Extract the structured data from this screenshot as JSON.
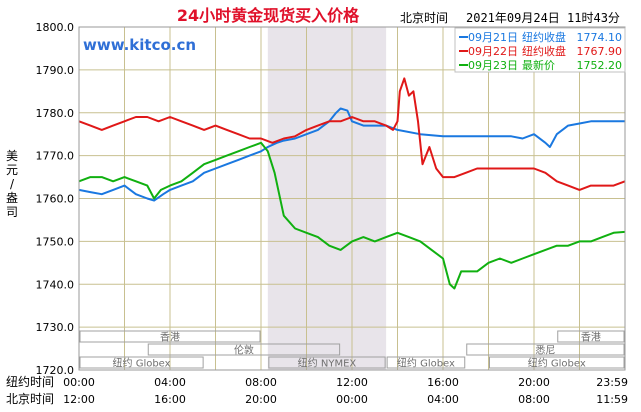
{
  "header": {
    "title": "24小时黄金现货买入价格",
    "timezone_label": "北京时间",
    "timestamp": "2021年09月24日 11时43分"
  },
  "watermark": "www.kitco.cn",
  "yaxis_label_chars": [
    "美",
    "元",
    "/",
    "盎",
    "司"
  ],
  "row_labels": {
    "newyork_time": "纽约时间",
    "beijing_time": "北京时间"
  },
  "colors": {
    "title": "#e0102a",
    "watermark": "#2f6fd6",
    "grid": "#c8c090",
    "frame": "#9a9a9a",
    "shade": "#e8e4ea",
    "series_blue": "#1a78e0",
    "series_red": "#e01818",
    "series_green": "#10b010"
  },
  "chart_data": {
    "type": "line",
    "ylim": [
      1720,
      1800
    ],
    "yticks": [
      "1800.0",
      "1790.0",
      "1780.0",
      "1770.0",
      "1760.0",
      "1750.0",
      "1740.0",
      "1730.0",
      "1720.0"
    ],
    "x_ticks_newyork": [
      "00:00",
      "04:00",
      "08:00",
      "12:00",
      "16:00",
      "20:00",
      "23:59"
    ],
    "x_ticks_beijing": [
      "12:00",
      "16:00",
      "20:00",
      "00:00",
      "04:00",
      "08:00",
      "11:59"
    ],
    "shaded_range_hours": [
      8.3,
      13.5
    ],
    "markets": [
      {
        "name": "香港",
        "start": 0,
        "end": 8,
        "row": 0
      },
      {
        "name": "香港",
        "start": 21,
        "end": 24,
        "row": 0
      },
      {
        "name": "伦敦",
        "start": 3,
        "end": 11.5,
        "row": 1
      },
      {
        "name": "悉尼",
        "start": 17,
        "end": 24,
        "row": 1
      },
      {
        "name": "纽约 Globex",
        "start": 0,
        "end": 5.5,
        "row": 2
      },
      {
        "name": "纽约 NYMEX",
        "start": 8.3,
        "end": 13.5,
        "row": 2
      },
      {
        "name": "纽约 Globex",
        "start": 13.5,
        "end": 17.0,
        "row": 2
      },
      {
        "name": "纽约 Globex",
        "start": 18,
        "end": 24,
        "row": 2
      }
    ],
    "legend": [
      {
        "date": "09月21日",
        "label": "纽约收盘",
        "value": "1774.10",
        "color": "#1a78e0"
      },
      {
        "date": "09月22日",
        "label": "纽约收盘",
        "value": "1767.90",
        "color": "#e01818"
      },
      {
        "date": "09月23日",
        "label": "最新价",
        "value": "1752.20",
        "color": "#10b010"
      }
    ],
    "series": [
      {
        "name": "09月21日",
        "color": "#1a78e0",
        "points": [
          [
            0,
            1762
          ],
          [
            0.5,
            1761.5
          ],
          [
            1,
            1761
          ],
          [
            1.5,
            1762
          ],
          [
            2,
            1763
          ],
          [
            2.5,
            1761
          ],
          [
            3,
            1760
          ],
          [
            3.3,
            1759.5
          ],
          [
            3.7,
            1761
          ],
          [
            4,
            1762
          ],
          [
            4.5,
            1763
          ],
          [
            5,
            1764
          ],
          [
            5.5,
            1766
          ],
          [
            6,
            1767
          ],
          [
            6.5,
            1768
          ],
          [
            7,
            1769
          ],
          [
            7.5,
            1770
          ],
          [
            8,
            1771
          ],
          [
            8.3,
            1772
          ],
          [
            8.7,
            1773
          ],
          [
            9,
            1773.5
          ],
          [
            9.5,
            1774
          ],
          [
            10,
            1775
          ],
          [
            10.5,
            1776
          ],
          [
            11,
            1778
          ],
          [
            11.3,
            1780
          ],
          [
            11.5,
            1781
          ],
          [
            11.8,
            1780.5
          ],
          [
            12,
            1778
          ],
          [
            12.5,
            1777
          ],
          [
            13,
            1777
          ],
          [
            13.5,
            1777
          ],
          [
            14,
            1776
          ],
          [
            15,
            1775
          ],
          [
            16,
            1774.5
          ],
          [
            17,
            1774.5
          ],
          [
            18,
            1774.5
          ],
          [
            19,
            1774.5
          ],
          [
            19.5,
            1774
          ],
          [
            20,
            1775
          ],
          [
            20.5,
            1773
          ],
          [
            20.7,
            1772
          ],
          [
            21,
            1775
          ],
          [
            21.5,
            1777
          ],
          [
            22,
            1777.5
          ],
          [
            22.5,
            1778
          ],
          [
            23,
            1778
          ],
          [
            23.5,
            1778
          ],
          [
            24,
            1778
          ]
        ]
      },
      {
        "name": "09月22日",
        "color": "#e01818",
        "points": [
          [
            0,
            1778
          ],
          [
            0.5,
            1777
          ],
          [
            1,
            1776
          ],
          [
            1.5,
            1777
          ],
          [
            2,
            1778
          ],
          [
            2.5,
            1779
          ],
          [
            3,
            1779
          ],
          [
            3.5,
            1778
          ],
          [
            4,
            1779
          ],
          [
            4.5,
            1778
          ],
          [
            5,
            1777
          ],
          [
            5.5,
            1776
          ],
          [
            6,
            1777
          ],
          [
            6.5,
            1776
          ],
          [
            7,
            1775
          ],
          [
            7.5,
            1774
          ],
          [
            8,
            1774
          ],
          [
            8.5,
            1773
          ],
          [
            9,
            1774
          ],
          [
            9.5,
            1774.5
          ],
          [
            10,
            1776
          ],
          [
            10.5,
            1777
          ],
          [
            11,
            1778
          ],
          [
            11.5,
            1778
          ],
          [
            12,
            1779
          ],
          [
            12.5,
            1778
          ],
          [
            13,
            1778
          ],
          [
            13.5,
            1777
          ],
          [
            13.8,
            1776
          ],
          [
            14,
            1778
          ],
          [
            14.1,
            1785
          ],
          [
            14.3,
            1788
          ],
          [
            14.5,
            1784
          ],
          [
            14.7,
            1785
          ],
          [
            14.9,
            1778
          ],
          [
            15.1,
            1768
          ],
          [
            15.4,
            1772
          ],
          [
            15.7,
            1767
          ],
          [
            16,
            1765
          ],
          [
            16.5,
            1765
          ],
          [
            17,
            1766
          ],
          [
            17.5,
            1767
          ],
          [
            18,
            1767
          ],
          [
            19,
            1767
          ],
          [
            20,
            1767
          ],
          [
            20.5,
            1766
          ],
          [
            21,
            1764
          ],
          [
            21.5,
            1763
          ],
          [
            22,
            1762
          ],
          [
            22.5,
            1763
          ],
          [
            23,
            1763
          ],
          [
            23.5,
            1763
          ],
          [
            24,
            1764
          ]
        ]
      },
      {
        "name": "09月23日",
        "color": "#10b010",
        "points": [
          [
            0,
            1764
          ],
          [
            0.5,
            1765
          ],
          [
            1,
            1765
          ],
          [
            1.5,
            1764
          ],
          [
            2,
            1765
          ],
          [
            2.5,
            1764
          ],
          [
            3,
            1763
          ],
          [
            3.3,
            1760
          ],
          [
            3.6,
            1762
          ],
          [
            4,
            1763
          ],
          [
            4.5,
            1764
          ],
          [
            5,
            1766
          ],
          [
            5.5,
            1768
          ],
          [
            6,
            1769
          ],
          [
            6.5,
            1770
          ],
          [
            7,
            1771
          ],
          [
            7.5,
            1772
          ],
          [
            8,
            1773
          ],
          [
            8.3,
            1771
          ],
          [
            8.6,
            1766
          ],
          [
            9,
            1756
          ],
          [
            9.5,
            1753
          ],
          [
            10,
            1752
          ],
          [
            10.5,
            1751
          ],
          [
            11,
            1749
          ],
          [
            11.5,
            1748
          ],
          [
            12,
            1750
          ],
          [
            12.5,
            1751
          ],
          [
            13,
            1750
          ],
          [
            13.5,
            1751
          ],
          [
            14,
            1752
          ],
          [
            14.5,
            1751
          ],
          [
            15,
            1750
          ],
          [
            15.5,
            1748
          ],
          [
            16,
            1746
          ],
          [
            16.3,
            1740
          ],
          [
            16.5,
            1739
          ],
          [
            16.8,
            1743
          ],
          [
            17,
            1743
          ],
          [
            17.5,
            1743
          ],
          [
            18,
            1745
          ],
          [
            18.5,
            1746
          ],
          [
            19,
            1745
          ],
          [
            19.5,
            1746
          ],
          [
            20,
            1747
          ],
          [
            20.5,
            1748
          ],
          [
            21,
            1749
          ],
          [
            21.5,
            1749
          ],
          [
            22,
            1750
          ],
          [
            22.5,
            1750
          ],
          [
            23,
            1751
          ],
          [
            23.5,
            1752
          ],
          [
            24,
            1752.2
          ]
        ]
      }
    ]
  }
}
